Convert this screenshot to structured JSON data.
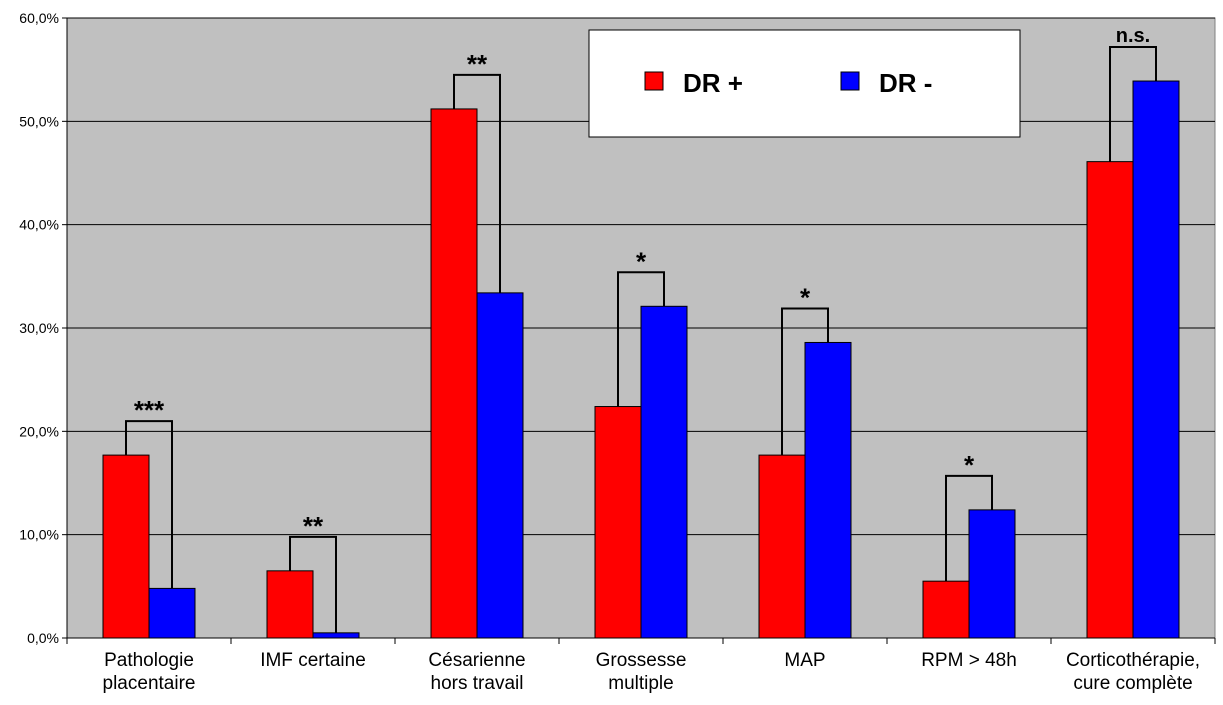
{
  "chart_data": {
    "type": "bar",
    "categories": [
      [
        "Pathologie",
        "placentaire"
      ],
      [
        "IMF certaine"
      ],
      [
        "Césarienne",
        "hors travail"
      ],
      [
        "Grossesse",
        "multiple"
      ],
      [
        "MAP"
      ],
      [
        "RPM > 48h"
      ],
      [
        "Corticothérapie,",
        "cure complète"
      ]
    ],
    "series": [
      {
        "name": "DR +",
        "color": "#ff0000",
        "values": [
          17.7,
          6.5,
          51.2,
          22.4,
          17.7,
          5.5,
          46.1
        ]
      },
      {
        "name": "DR -",
        "color": "#0000ff",
        "values": [
          4.8,
          0.5,
          33.4,
          32.1,
          28.6,
          12.4,
          53.9
        ]
      }
    ],
    "significance": [
      "***",
      "**",
      "**",
      "*",
      "*",
      "*",
      "n.s."
    ],
    "ylim": [
      0,
      60
    ],
    "yticks": [
      "0,0%",
      "10,0%",
      "20,0%",
      "30,0%",
      "40,0%",
      "50,0%",
      "60,0%"
    ],
    "grid": true,
    "legend_position": "top-right",
    "plot_background": "#c0c0c0"
  }
}
